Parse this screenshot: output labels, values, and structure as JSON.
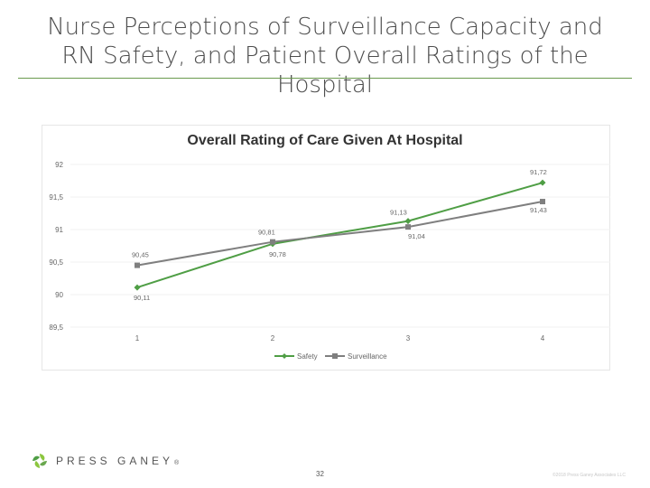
{
  "slide": {
    "title": "Nurse Perceptions of Surveillance Capacity and RN Safety, and Patient Overall Ratings of the Hospital",
    "page_number": "32",
    "logo_text": "PRESS GANEY",
    "logo_mark": "®",
    "copyright": "©2018 Press Ganey Associates LLC"
  },
  "colors": {
    "safety": "#4f9e45",
    "surveillance": "#7f7f7f",
    "accent_rule": "#6a9a4e",
    "gridline": "#f2f2f2"
  },
  "chart_data": {
    "type": "line",
    "title": "Overall Rating of Care Given At Hospital",
    "xlabel": "",
    "ylabel": "",
    "categories": [
      "1",
      "2",
      "3",
      "4"
    ],
    "y_ticks": [
      "92",
      "91,5",
      "91",
      "90,5",
      "90",
      "89,5"
    ],
    "ylim": [
      89.5,
      92
    ],
    "grid": true,
    "legend_position": "bottom",
    "series": [
      {
        "name": "Safety",
        "marker": "diamond",
        "values": [
          90.11,
          90.78,
          91.13,
          91.72
        ],
        "labels": [
          "90,11",
          "90,78",
          "91,13",
          "91,72"
        ]
      },
      {
        "name": "Surveillance",
        "marker": "square",
        "values": [
          90.45,
          90.81,
          91.04,
          91.43
        ],
        "labels": [
          "90,45",
          "90,81",
          "91,04",
          "91,43"
        ]
      }
    ]
  }
}
